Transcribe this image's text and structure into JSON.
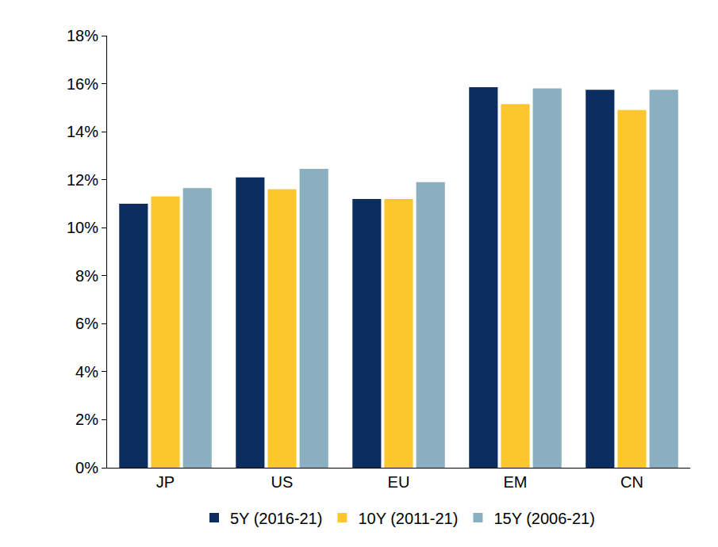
{
  "chart_data": {
    "type": "bar",
    "categories": [
      "JP",
      "US",
      "EU",
      "EM",
      "CN"
    ],
    "series": [
      {
        "name": "5Y (2016-21)",
        "color": "#0b2d5f",
        "values": [
          11.0,
          12.1,
          11.2,
          15.85,
          15.75
        ]
      },
      {
        "name": "10Y (2011-21)",
        "color": "#fcc62d",
        "values": [
          11.3,
          11.6,
          11.2,
          15.15,
          14.9
        ]
      },
      {
        "name": "15Y (2006-21)",
        "color": "#8aafc0",
        "values": [
          11.65,
          12.45,
          11.9,
          15.8,
          15.75
        ]
      }
    ],
    "ylim": [
      0,
      18
    ],
    "yticks": [
      {
        "value": 0,
        "label": "0%"
      },
      {
        "value": 2,
        "label": "2%"
      },
      {
        "value": 4,
        "label": "4%"
      },
      {
        "value": 6,
        "label": "6%"
      },
      {
        "value": 8,
        "label": "8%"
      },
      {
        "value": 10,
        "label": "10%"
      },
      {
        "value": 12,
        "label": "12%"
      },
      {
        "value": 14,
        "label": "14%"
      },
      {
        "value": 16,
        "label": "16%"
      },
      {
        "value": 18,
        "label": "18%"
      }
    ],
    "grid": false,
    "legend": "bottom"
  }
}
